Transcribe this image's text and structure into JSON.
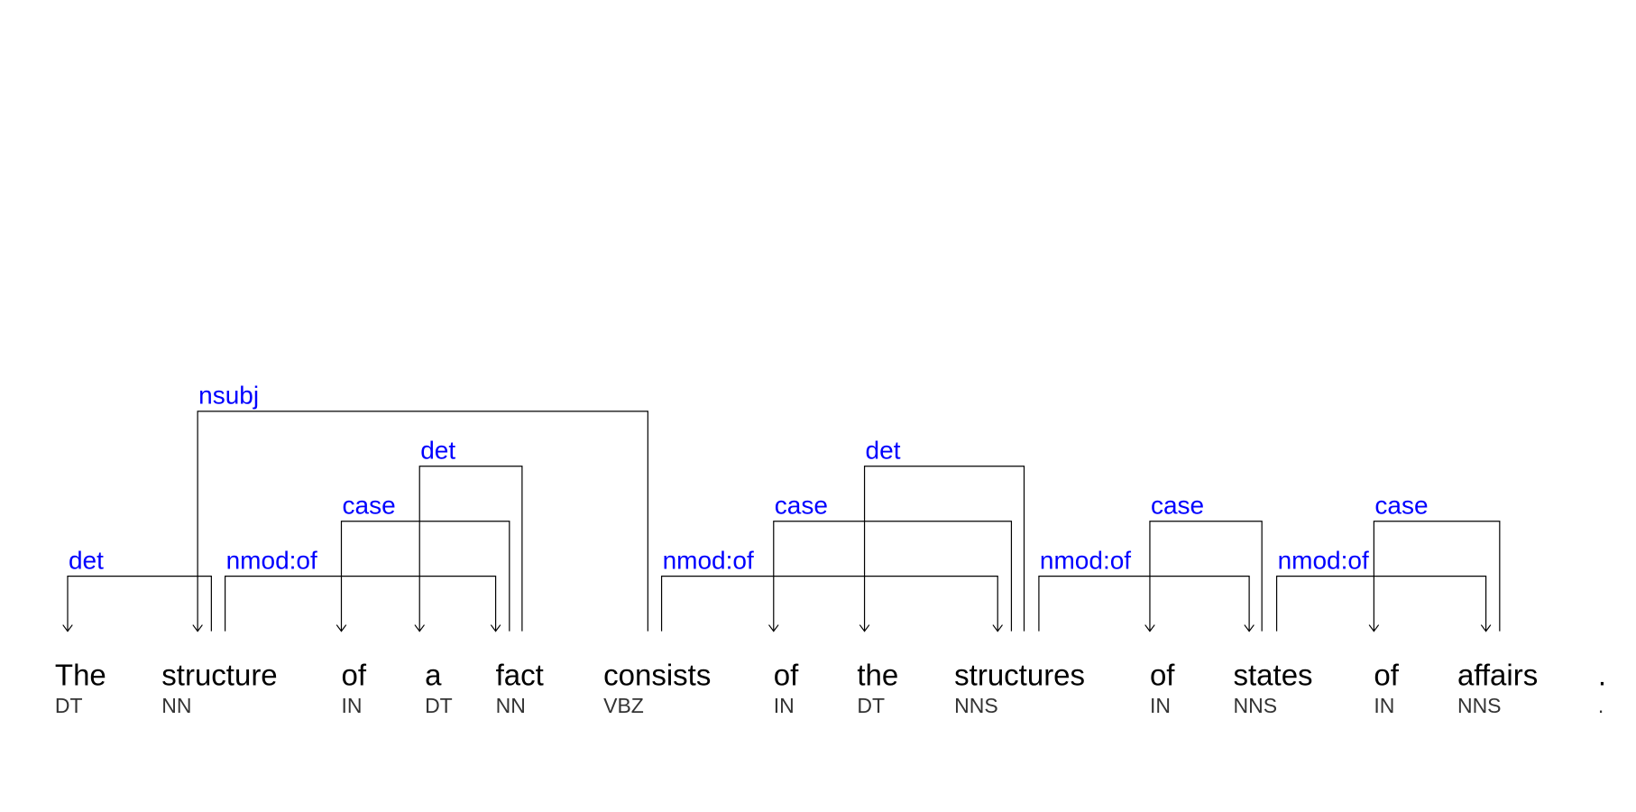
{
  "tokens": [
    {
      "word": "The",
      "tag": "DT"
    },
    {
      "word": "structure",
      "tag": "NN"
    },
    {
      "word": "of",
      "tag": "IN"
    },
    {
      "word": "a",
      "tag": "DT"
    },
    {
      "word": "fact",
      "tag": "NN"
    },
    {
      "word": "consists",
      "tag": "VBZ"
    },
    {
      "word": "of",
      "tag": "IN"
    },
    {
      "word": "the",
      "tag": "DT"
    },
    {
      "word": "structures",
      "tag": "NNS"
    },
    {
      "word": "of",
      "tag": "IN"
    },
    {
      "word": "states",
      "tag": "NNS"
    },
    {
      "word": "of",
      "tag": "IN"
    },
    {
      "word": "affairs",
      "tag": "NNS"
    },
    {
      "word": ".",
      "tag": "."
    }
  ],
  "arcs": [
    {
      "label": "det",
      "head": 1,
      "dep": 0
    },
    {
      "label": "nsubj",
      "head": 5,
      "dep": 1
    },
    {
      "label": "nmod:of",
      "head": 1,
      "dep": 4
    },
    {
      "label": "case",
      "head": 4,
      "dep": 2
    },
    {
      "label": "det",
      "head": 4,
      "dep": 3
    },
    {
      "label": "nmod:of",
      "head": 5,
      "dep": 8
    },
    {
      "label": "case",
      "head": 8,
      "dep": 6
    },
    {
      "label": "det",
      "head": 8,
      "dep": 7
    },
    {
      "label": "nmod:of",
      "head": 8,
      "dep": 10
    },
    {
      "label": "case",
      "head": 10,
      "dep": 9
    },
    {
      "label": "nmod:of",
      "head": 10,
      "dep": 12
    },
    {
      "label": "case",
      "head": 12,
      "dep": 11
    }
  ],
  "colors": {
    "word": "#000000",
    "tag": "#333333",
    "arc_label": "#0000ff",
    "arc_line": "#000000"
  }
}
